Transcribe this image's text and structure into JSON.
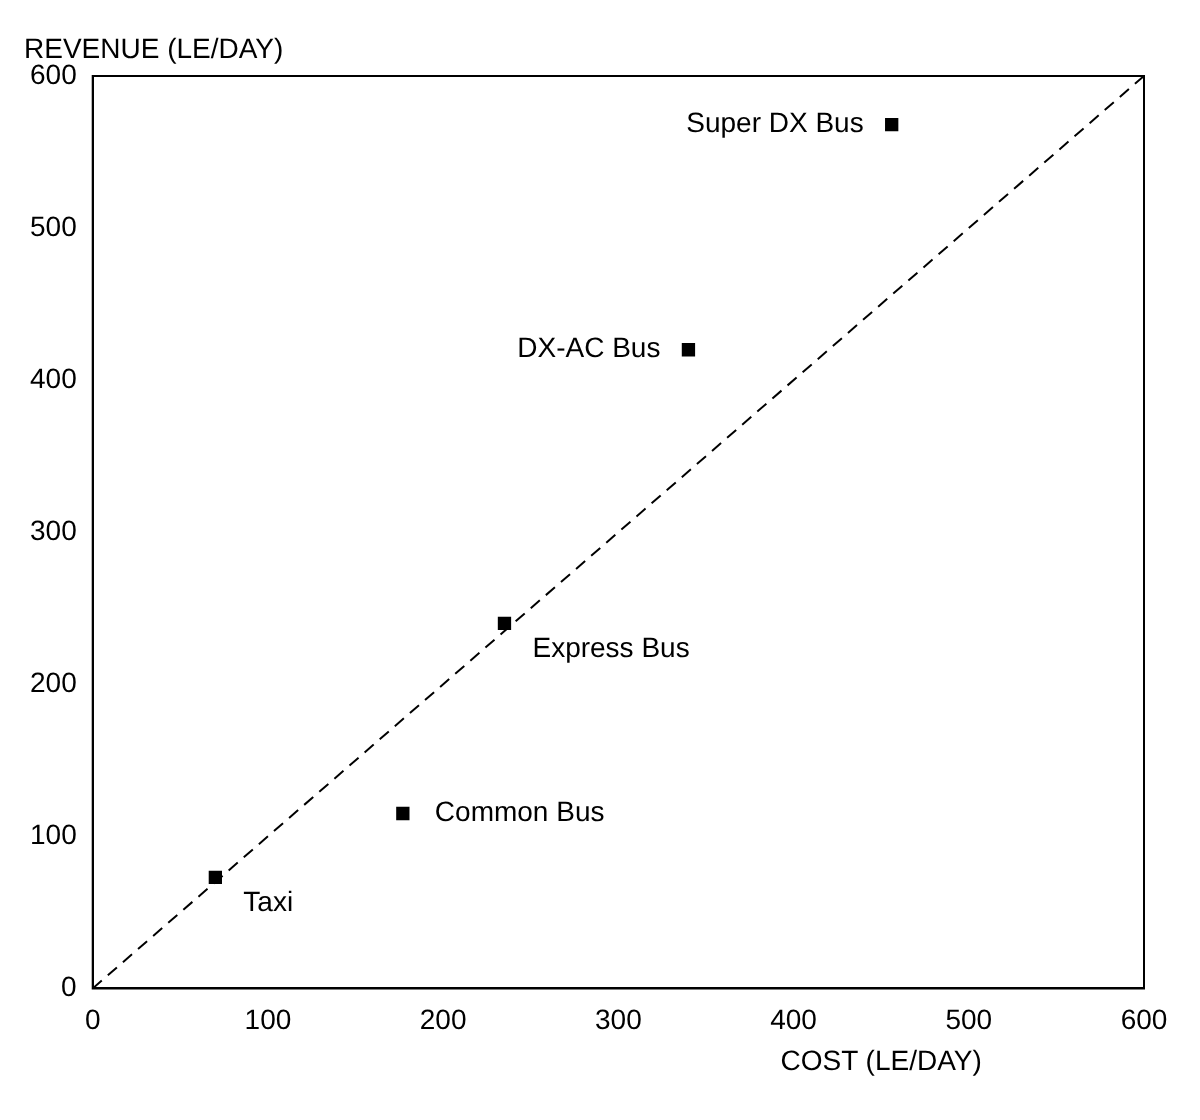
{
  "chart_data": {
    "type": "scatter",
    "xlabel": "COST (LE/DAY)",
    "ylabel": "REVENUE (LE/DAY)",
    "xlim": [
      0,
      600
    ],
    "ylim": [
      0,
      600
    ],
    "xticks": [
      0,
      100,
      200,
      300,
      400,
      500,
      600
    ],
    "yticks": [
      0,
      100,
      200,
      300,
      400,
      500,
      600
    ],
    "grid": false,
    "legend": false,
    "marker": "square",
    "series": [
      {
        "color": "#000000",
        "x": [
          70,
          177,
          235,
          340,
          456
        ],
        "values": [
          73,
          115,
          240,
          420,
          568
        ]
      },
      {
        "type": "line",
        "color": "#000000",
        "line_style": "dashed",
        "marker": "none",
        "x": [
          0,
          600
        ],
        "values": [
          0,
          600
        ]
      }
    ],
    "annotations": [
      {
        "text": "Taxi",
        "x": 70,
        "y": 73
      },
      {
        "text": "Common Bus",
        "x": 177,
        "y": 115
      },
      {
        "text": "Express Bus",
        "x": 235,
        "y": 240
      },
      {
        "text": "DX-AC Bus",
        "x": 340,
        "y": 420
      },
      {
        "text": "Super DX Bus",
        "x": 456,
        "y": 568
      }
    ]
  }
}
